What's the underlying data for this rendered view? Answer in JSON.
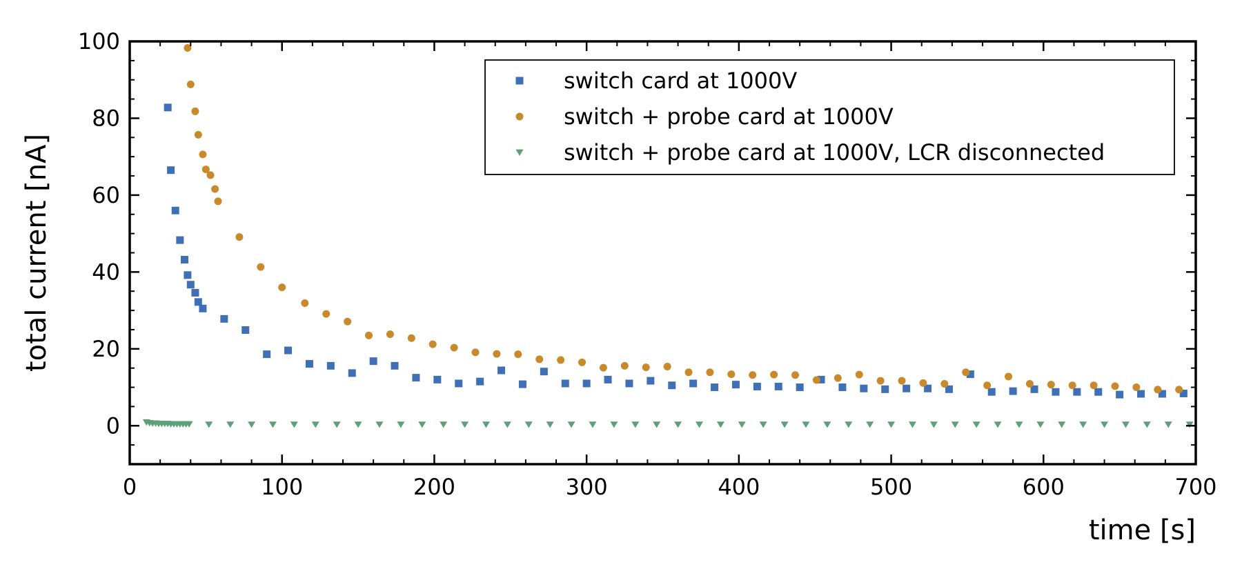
{
  "chart_data": {
    "type": "scatter",
    "xlabel": "time [s]",
    "ylabel": "total current [nA]",
    "xlim": [
      0,
      700
    ],
    "ylim": [
      -10,
      100
    ],
    "xticks": [
      0,
      100,
      200,
      300,
      400,
      500,
      600,
      700
    ],
    "yticks": [
      0,
      20,
      40,
      60,
      80,
      100
    ],
    "xtick_labels": [
      "0",
      "100",
      "200",
      "300",
      "400",
      "500",
      "600",
      "700"
    ],
    "ytick_labels": [
      "0",
      "20",
      "40",
      "60",
      "80",
      "100"
    ],
    "grid": false,
    "legend_position": "top-right",
    "series": [
      {
        "name": "switch card at 1000V",
        "marker": "square",
        "color": "#3f6fb5",
        "x": [
          25,
          27,
          30,
          33,
          36,
          38,
          40,
          43,
          45,
          48,
          62,
          76,
          90,
          104,
          118,
          132,
          146,
          160,
          174,
          188,
          202,
          216,
          230,
          244,
          258,
          272,
          286,
          300,
          314,
          328,
          342,
          356,
          370,
          384,
          398,
          412,
          426,
          440,
          454,
          468,
          482,
          496,
          510,
          524,
          538,
          552,
          566,
          580,
          594,
          608,
          622,
          636,
          650,
          664,
          678,
          692
        ],
        "y": [
          82.8,
          66.5,
          56.0,
          48.3,
          43.2,
          39.2,
          36.7,
          34.6,
          32.2,
          30.5,
          27.8,
          24.9,
          18.6,
          19.6,
          16.1,
          15.6,
          13.7,
          16.8,
          15.6,
          12.5,
          12.0,
          11.0,
          11.5,
          14.4,
          10.8,
          14.1,
          11.0,
          11.0,
          12.0,
          11.0,
          11.7,
          10.5,
          11.0,
          10.0,
          10.7,
          10.2,
          10.2,
          10.0,
          12.0,
          10.0,
          9.7,
          9.5,
          9.7,
          9.7,
          9.5,
          13.4,
          8.8,
          9.0,
          9.5,
          8.8,
          8.8,
          8.8,
          8.1,
          8.3,
          8.3,
          8.4
        ]
      },
      {
        "name": "switch + probe card at 1000V",
        "marker": "circle",
        "color": "#c88a2a",
        "x": [
          38,
          40,
          43,
          45,
          48,
          50,
          53,
          56,
          58,
          72,
          86,
          100,
          115,
          129,
          143,
          157,
          171,
          185,
          199,
          213,
          227,
          241,
          255,
          269,
          283,
          297,
          311,
          325,
          339,
          353,
          367,
          381,
          395,
          409,
          423,
          437,
          451,
          465,
          479,
          493,
          507,
          521,
          535,
          549,
          563,
          577,
          591,
          605,
          619,
          633,
          647,
          661,
          675,
          689
        ],
        "y": [
          98.3,
          88.8,
          81.8,
          75.7,
          70.6,
          66.7,
          65.2,
          61.6,
          58.4,
          49.1,
          41.3,
          36.0,
          31.9,
          29.1,
          27.1,
          23.5,
          23.8,
          22.8,
          21.2,
          20.3,
          19.1,
          18.7,
          18.6,
          17.3,
          17.1,
          16.5,
          15.1,
          15.6,
          15.2,
          15.4,
          13.9,
          13.9,
          13.4,
          13.2,
          13.3,
          13.2,
          11.9,
          12.4,
          13.3,
          11.7,
          11.7,
          11.1,
          10.9,
          13.9,
          10.5,
          12.8,
          10.9,
          10.7,
          10.5,
          10.5,
          10.3,
          10.0,
          9.4,
          9.4
        ]
      },
      {
        "name": "switch + probe card at 1000V, LCR disconnected",
        "marker": "triangle-down",
        "color": "#5fa07a",
        "x": [
          11,
          13,
          15,
          17,
          19,
          21,
          23,
          25,
          27,
          29,
          31,
          33,
          35,
          37,
          39,
          52,
          66,
          80,
          94,
          108,
          122,
          136,
          150,
          164,
          178,
          192,
          206,
          220,
          234,
          248,
          262,
          276,
          290,
          304,
          318,
          332,
          346,
          360,
          374,
          388,
          402,
          416,
          430,
          444,
          458,
          472,
          486,
          500,
          514,
          528,
          542,
          556,
          570,
          584,
          598,
          612,
          626,
          640,
          654,
          668,
          682,
          696
        ],
        "y": [
          0.9,
          0.7,
          0.6,
          0.6,
          0.5,
          0.5,
          0.5,
          0.5,
          0.4,
          0.4,
          0.4,
          0.4,
          0.4,
          0.4,
          0.4,
          0.3,
          0.3,
          0.3,
          0.3,
          0.3,
          0.3,
          0.3,
          0.3,
          0.3,
          0.3,
          0.3,
          0.3,
          0.3,
          0.3,
          0.3,
          0.3,
          0.3,
          0.3,
          0.3,
          0.3,
          0.3,
          0.3,
          0.3,
          0.3,
          0.3,
          0.3,
          0.3,
          0.3,
          0.3,
          0.3,
          0.3,
          0.3,
          0.3,
          0.3,
          0.3,
          0.3,
          0.3,
          0.3,
          0.3,
          0.3,
          0.3,
          0.3,
          0.3,
          0.3,
          0.3,
          0.3,
          0.3
        ]
      }
    ]
  }
}
